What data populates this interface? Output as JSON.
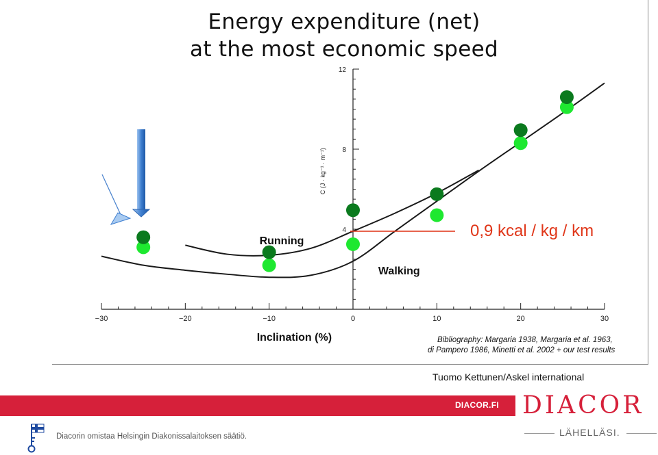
{
  "slide": {
    "title_line1": "Energy expenditure (net)",
    "title_line2": "at the most economic speed",
    "credit": "Tuomo Kettunen/Askel international"
  },
  "footer": {
    "band_link": "DIACOR.FI",
    "brand_name": "DIACOR",
    "brand_tagline": "LÄHELLÄSI.",
    "owner_text": "Diacorin omistaa Helsingin Diakonissalaitoksen säätiö.",
    "icon": "key-flag-icon"
  },
  "colors": {
    "brand_red": "#d6203a",
    "dark_green": "#0b7a1e",
    "light_green": "#1ee830",
    "annotation_red": "#e0371a",
    "arrow_blue": "#3f7fd0"
  },
  "chart_data": {
    "type": "line",
    "xlabel": "Inclination (%)",
    "ylabel": "C (J · kg⁻¹ · m⁻¹)",
    "xlim": [
      -30,
      30
    ],
    "ylim": [
      0,
      12
    ],
    "x_ticks": [
      -30,
      -20,
      -10,
      0,
      10,
      20,
      30
    ],
    "y_ticks": [
      4,
      8,
      12
    ],
    "series": [
      {
        "name": "Running",
        "x": [
          -20,
          -15,
          -10,
          -5,
          0,
          5,
          10,
          15
        ],
        "y": [
          3.2,
          2.75,
          2.7,
          3.05,
          3.9,
          4.8,
          5.8,
          6.95
        ]
      },
      {
        "name": "Walking",
        "x": [
          -30,
          -25,
          -20,
          -15,
          -10,
          -5,
          0,
          5,
          10,
          15,
          20,
          25,
          30
        ],
        "y": [
          2.65,
          2.2,
          1.95,
          1.75,
          1.6,
          1.7,
          2.4,
          3.9,
          5.4,
          6.9,
          8.35,
          9.8,
          11.3
        ]
      }
    ],
    "test_results": {
      "dark": [
        {
          "x": -25,
          "y": 3.6
        },
        {
          "x": -10,
          "y": 2.85
        },
        {
          "x": 0,
          "y": 4.95
        },
        {
          "x": 10,
          "y": 5.75
        },
        {
          "x": 20,
          "y": 8.95
        },
        {
          "x": 25.5,
          "y": 10.6
        }
      ],
      "light": [
        {
          "x": -25,
          "y": 3.1
        },
        {
          "x": -10,
          "y": 2.2
        },
        {
          "x": 0,
          "y": 3.25
        },
        {
          "x": 10,
          "y": 4.7
        },
        {
          "x": 20,
          "y": 8.3
        },
        {
          "x": 25.5,
          "y": 10.1
        }
      ]
    },
    "annotation": {
      "text": "0,9 kcal / kg / km",
      "value_y": 3.9
    },
    "bibliography_line1": "Bibliography: Margaria 1938, Margaria et al. 1963,",
    "bibliography_line2": "di Pampero 1986, Minetti et al. 2002 + our test results"
  }
}
